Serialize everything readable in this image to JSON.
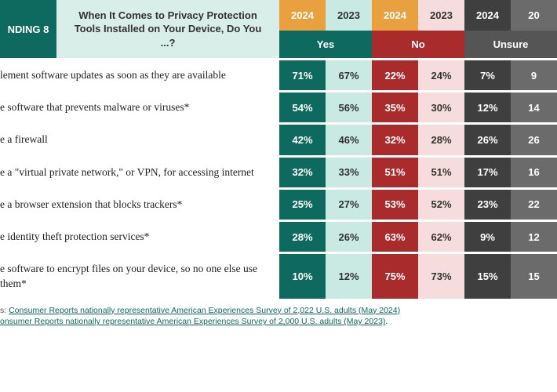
{
  "colors": {
    "finding_bg": "#0e6a5e",
    "question_bg": "#d9ede9",
    "yes_year2024_bg": "#e9a13f",
    "yes_year2023_bg": "#c9e9e3",
    "yes_cat_bg": "#0e6a5e",
    "no_year2024_bg": "#e9a13f",
    "no_year2023_bg": "#f6dcdc",
    "no_cat_bg": "#a92b2b",
    "unsure_year2024_bg": "#3f3f3f",
    "unsure_year2023_bg": "#6b6b6b",
    "unsure_cat_bg": "#555555",
    "link_color": "#0e6a5e"
  },
  "header": {
    "finding_label": "NDING 8",
    "question": "When It Comes to Privacy Protection Tools Installed on Your Device, Do You ...?",
    "years": {
      "y2024": "2024",
      "y2023": "2023",
      "y2023_cut": "20"
    },
    "categories": {
      "yes": "Yes",
      "no": "No",
      "unsure": "Unsure"
    }
  },
  "rows": [
    {
      "label": "lement software updates as soon as they are available",
      "yes2024": "71%",
      "yes2023": "67%",
      "no2024": "22%",
      "no2023": "24%",
      "unsure2024": "7%",
      "unsure2023": "9"
    },
    {
      "label": "e software that prevents malware or viruses*",
      "yes2024": "54%",
      "yes2023": "56%",
      "no2024": "35%",
      "no2023": "30%",
      "unsure2024": "12%",
      "unsure2023": "14"
    },
    {
      "label": "e a firewall",
      "yes2024": "42%",
      "yes2023": "46%",
      "no2024": "32%",
      "no2023": "28%",
      "unsure2024": "26%",
      "unsure2023": "26"
    },
    {
      "label": "e a \"virtual private network,\" or VPN, for accessing internet",
      "yes2024": "32%",
      "yes2023": "33%",
      "no2024": "51%",
      "no2023": "51%",
      "unsure2024": "17%",
      "unsure2023": "16"
    },
    {
      "label": "e a browser extension that blocks trackers*",
      "yes2024": "25%",
      "yes2023": "27%",
      "no2024": "53%",
      "no2023": "52%",
      "unsure2024": "23%",
      "unsure2023": "22"
    },
    {
      "label": "e identity theft protection services*",
      "yes2024": "28%",
      "yes2023": "26%",
      "no2024": "63%",
      "no2023": "62%",
      "unsure2024": "9%",
      "unsure2023": "12"
    },
    {
      "label": "e software to encrypt files on your device, so no one else use them*",
      "yes2024": "10%",
      "yes2023": "12%",
      "no2024": "75%",
      "no2023": "73%",
      "unsure2024": "15%",
      "unsure2023": "15"
    }
  ],
  "sources": {
    "prefix1": "s: ",
    "link1": "Consumer Reports nationally representative American Experiences Survey of 2,022 U.S. adults (May 2024)",
    "link2": "onsumer Reports nationally representative American Experiences Survey of 2,000 U.S. adults (May 2023)",
    "suffix2": "."
  },
  "layout": {
    "col_widths": {
      "label": 356,
      "val": 59
    }
  }
}
